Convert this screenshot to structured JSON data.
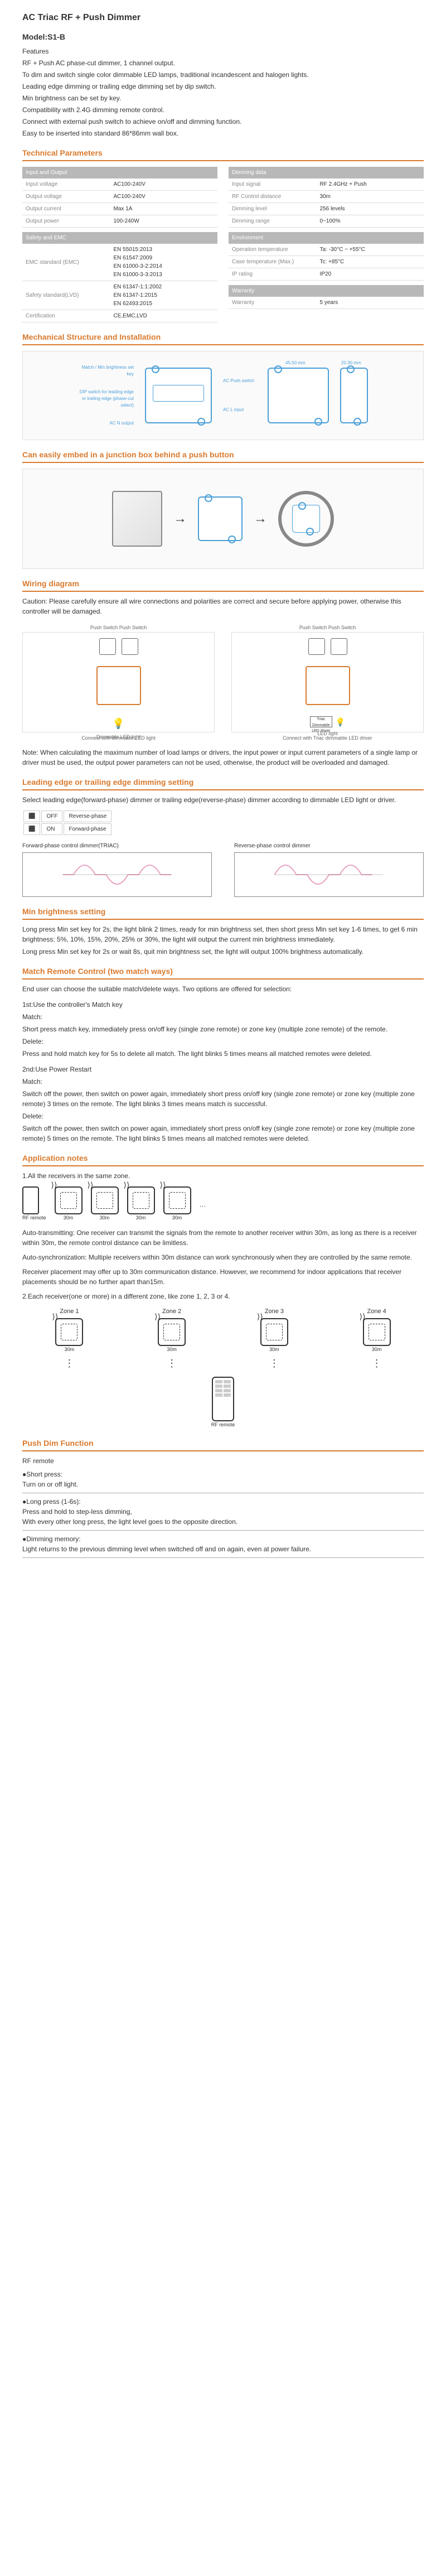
{
  "title": "AC Triac RF + Push Dimmer",
  "model": "Model:S1-B",
  "features_heading": "Features",
  "features": [
    "RF + Push AC phase-cut dimmer, 1 channel output.",
    "To dim and switch single color dimmable LED lamps, traditional incandescent and halogen lights.",
    "Leading edge dimming or trailing edge dimming set by dip switch.",
    "Min brightness can be set by key.",
    "Compatibility with 2.4G dimming remote control.",
    "Connect with external push switch to achieve on/off and dimming function.",
    "Easy to be inserted into standard 86*86mm wall box."
  ],
  "tech_params_heading": "Technical Parameters",
  "param_groups": {
    "io": {
      "title": "Input and Output",
      "rows": [
        [
          "Input voltage",
          "AC100-240V"
        ],
        [
          "Output voltage",
          "AC100-240V"
        ],
        [
          "Output current",
          "Max 1A"
        ],
        [
          "Output power",
          "100-240W"
        ]
      ]
    },
    "safety": {
      "title": "Safety and EMC",
      "rows": [
        [
          "EMC standard (EMC)",
          "EN 55015:2013\nEN 61547:2009\nEN 61000-3-2:2014\nEN 61000-3-3:2013"
        ],
        [
          "Safety standard(LVD)",
          "EN 61347-1:1:2002\nEN 61347-1:2015\nEN 62493:2015"
        ],
        [
          "Certification",
          "CE,EMC,LVD"
        ]
      ]
    },
    "dimming": {
      "title": "Dimming data",
      "rows": [
        [
          "Input signal",
          "RF 2.4GHz + Push"
        ],
        [
          "RF Control distance",
          "30m"
        ],
        [
          "Dimming level",
          "256 levels"
        ],
        [
          "Dimming range",
          "0~100%"
        ]
      ]
    },
    "env": {
      "title": "Environment",
      "rows": [
        [
          "Operation temperature",
          "Ta: -30°C ~ +55°C"
        ],
        [
          "Case temperature (Max.)",
          "Tc: +85°C"
        ],
        [
          "IP rating",
          "IP20"
        ]
      ]
    },
    "warranty": {
      "title": "Warranty",
      "rows": [
        [
          "Warranty",
          "5 years"
        ]
      ]
    }
  },
  "mech_heading": "Mechanical Structure and Installation",
  "mech_labels": {
    "match": "Match / Min brightness set key",
    "dip": "DIP switch for leading edge or trailing edge (phase-cut select)",
    "acn": "AC N output",
    "acl": "AC L input",
    "push": "AC Push switch",
    "dim1": "45.50 mm",
    "dim2": "20.30 mm"
  },
  "embed_heading": "Can easily embed in a junction box behind a push button",
  "wiring_heading": "Wiring diagram",
  "wiring_caution": "Caution: Please carefully ensure all wire connections and polarities are correct and secure before applying power, otherwise this controller will be damaged.",
  "wiring_left": {
    "switches": "Push Switch    Push Switch",
    "bulb": "Dimmable LED light",
    "caption": "Connect with dimmable LED light"
  },
  "wiring_right": {
    "switches": "Push Switch    Push Switch",
    "driver": "Triac Dimmable LED driver",
    "led": "LED light",
    "caption": "Connect with Triac dimmable LED driver"
  },
  "wiring_note": "Note: When calculating the maximum number of load lamps or drivers, the input power or input current parameters of a single lamp or driver must be used, the output power parameters can not be used, otherwise, the product will be overloaded and damaged.",
  "edge_heading": "Leading edge or trailing edge dimming setting",
  "edge_intro": "Select leading edge(forward-phase) dimmer or trailing edge(reverse-phase) dimmer according to dimmable LED light or driver.",
  "phase_table": [
    [
      "OFF",
      "Reverse-phase"
    ],
    [
      "ON",
      "Forward-phase"
    ]
  ],
  "phase_fwd": "Forward-phase control dimmer(TRIAC)",
  "phase_rev": "Reverse-phase control dimmer",
  "min_heading": "Min brightness setting",
  "min_text": [
    "Long press Min set key for 2s, the light blink 2 times, ready for min brightness set, then short press Min set key 1-6 times, to get 6 min brightness: 5%, 10%, 15%, 20%, 25% or 30%, the light will output the current min brightness immediately.",
    "Long press Min set key for 2s or wait 8s, quit min brightness set, the light will output 100% brightness automatically."
  ],
  "match_heading": "Match Remote Control (two match ways)",
  "match_intro": "End user can choose the suitable match/delete ways. Two options are offered for selection:",
  "match1_title": "1st:Use the controller's Match key",
  "match1": [
    "Match:",
    "Short press match key, immediately press on/off key (single zone remote) or zone key (multiple zone remote) of the remote.",
    "Delete:",
    "Press and hold match key for 5s to delete all match. The light blinks 5 times means all matched remotes were deleted."
  ],
  "match2_title": "2nd:Use Power Restart",
  "match2": [
    "Match:",
    "Switch off the power, then switch on power again, immediately short press on/off key (single zone remote) or zone key (multiple zone remote) 3 times on the remote. The light blinks 3 times means match is successful.",
    "Delete:",
    "Switch off the power, then switch on power again, immediately short press on/off key (single zone remote) or zone key (multiple zone remote) 5 times on the remote. The light blinks 5 times means all matched remotes were deleted."
  ],
  "app_heading": "Application notes",
  "app1": "1.All the receivers in the same zone.",
  "rf_remote": "RF remote",
  "range": "30m",
  "app_auto": "Auto-transmitting: One receiver can transmit the signals from the remote to another receiver within 30m, as long as there is a receiver within 30m, the remote control distance can be limitless.",
  "app_sync": "Auto-synchronization: Multiple receivers within 30m distance can work synchronously when they are controlled by the same remote.",
  "app_place": "Receiver placement may offer up to 30m communication distance. However, we recommend for indoor applications that receiver placements should be no further apart than15m.",
  "app2": "2.Each receiver(one or more) in a different zone, like zone 1, 2, 3 or 4.",
  "zones": [
    "Zone 1",
    "Zone 2",
    "Zone 3",
    "Zone 4"
  ],
  "push_heading": "Push Dim Function",
  "push_rf": "RF remote",
  "push_items": [
    {
      "label": "●Short press:",
      "text": "Turn on or off light."
    },
    {
      "label": "●Long press (1-6s):",
      "text": "Press and hold to step-less dimming,\nWith every other long press, the light level goes to the opposite direction."
    },
    {
      "label": "●Dimming memory:",
      "text": "Light returns to the previous dimming level when switched off and on again, even at power failure."
    }
  ],
  "colors": {
    "accent": "#d97a2e",
    "blue": "#4a9fd8",
    "pink": "#e8a0c0",
    "grey_header": "#b8b8b8"
  }
}
